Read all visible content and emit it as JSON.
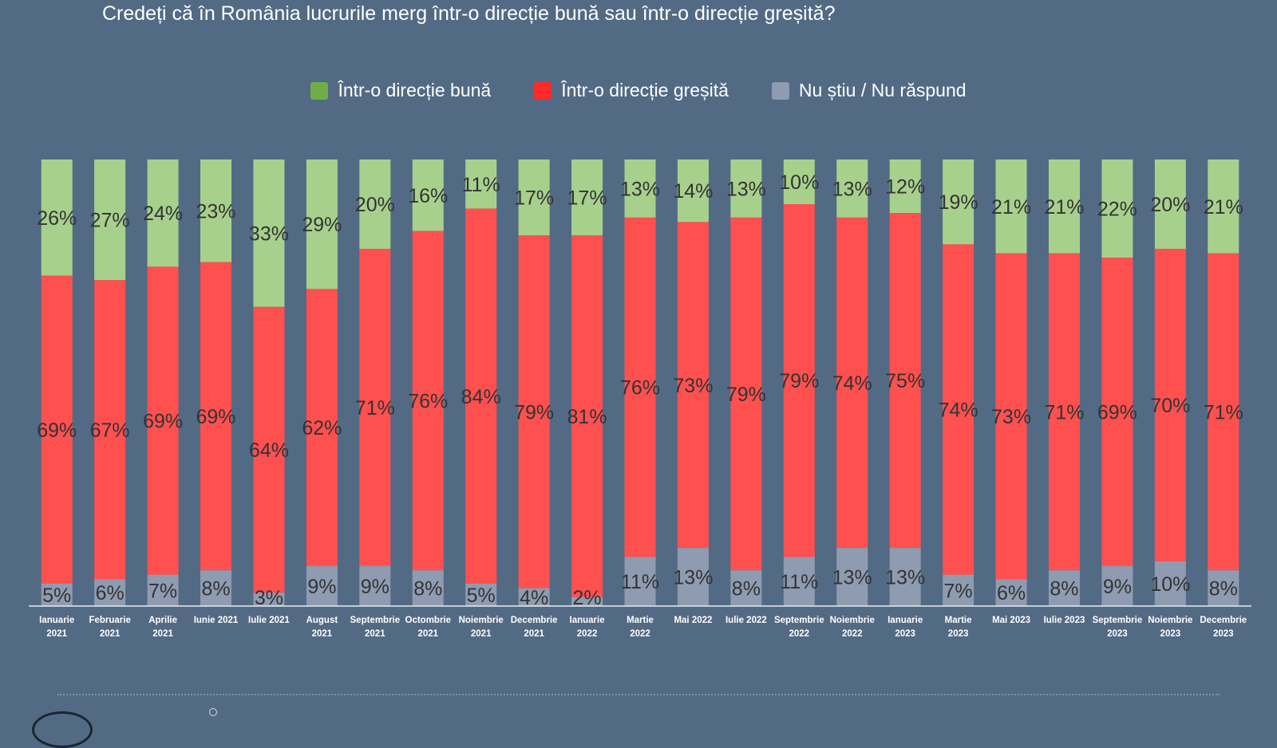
{
  "colors": {
    "background": "#536a84",
    "good": "#a8d08d",
    "bad": "#ff5050",
    "unknown": "#8e9bb0",
    "legend_good": "#70ad47",
    "legend_bad": "#ff2a2a",
    "legend_unknown": "#8e9bb0",
    "label_text": "#333333",
    "axis_text": "#ffffff"
  },
  "chart_data": {
    "type": "bar",
    "stacked": true,
    "normalized": true,
    "title": "Credeți că în România lucrurile merg într-o direcție bună sau într-o direcție greșită?",
    "legend_position": "top-center",
    "categories": [
      [
        "Ianuarie",
        "2021"
      ],
      [
        "Februarie",
        "2021"
      ],
      [
        "Aprilie",
        "2021"
      ],
      [
        "Iunie 2021"
      ],
      [
        "Iulie 2021"
      ],
      [
        "August",
        "2021"
      ],
      [
        "Septembrie",
        "2021"
      ],
      [
        "Octombrie",
        "2021"
      ],
      [
        "Noiembrie",
        "2021"
      ],
      [
        "Decembrie",
        "2021"
      ],
      [
        "Ianuarie",
        "2022"
      ],
      [
        "Martie",
        "2022"
      ],
      [
        "Mai 2022"
      ],
      [
        "Iulie 2022"
      ],
      [
        "Septembrie",
        "2022"
      ],
      [
        "Noiembrie",
        "2022"
      ],
      [
        "Ianuarie",
        "2023"
      ],
      [
        "Martie",
        "2023"
      ],
      [
        "Mai 2023"
      ],
      [
        "Iulie 2023"
      ],
      [
        "Septembrie",
        "2023"
      ],
      [
        "Noiembrie",
        "2023"
      ],
      [
        "Decembrie",
        "2023"
      ]
    ],
    "series": [
      {
        "key": "unknown",
        "name": "Nu știu / Nu răspund",
        "values": [
          5,
          6,
          7,
          8,
          3,
          9,
          9,
          8,
          5,
          4,
          2,
          11,
          13,
          8,
          11,
          13,
          13,
          7,
          6,
          8,
          9,
          10,
          8
        ]
      },
      {
        "key": "bad",
        "name": "Într-o direcție greșită",
        "values": [
          69,
          67,
          69,
          69,
          64,
          62,
          71,
          76,
          84,
          79,
          81,
          76,
          73,
          79,
          79,
          74,
          75,
          74,
          73,
          71,
          69,
          70,
          71
        ]
      },
      {
        "key": "good",
        "name": "Într-o direcție bună",
        "values": [
          26,
          27,
          24,
          23,
          33,
          29,
          20,
          16,
          11,
          17,
          17,
          13,
          14,
          13,
          10,
          13,
          12,
          19,
          21,
          21,
          22,
          20,
          21
        ]
      }
    ],
    "value_suffix": "%"
  },
  "legend": [
    {
      "label": "Într-o direcție bună",
      "color_key": "legend_good"
    },
    {
      "label": "Într-o direcție greșită",
      "color_key": "legend_bad"
    },
    {
      "label": "Nu știu / Nu răspund",
      "color_key": "legend_unknown"
    }
  ]
}
